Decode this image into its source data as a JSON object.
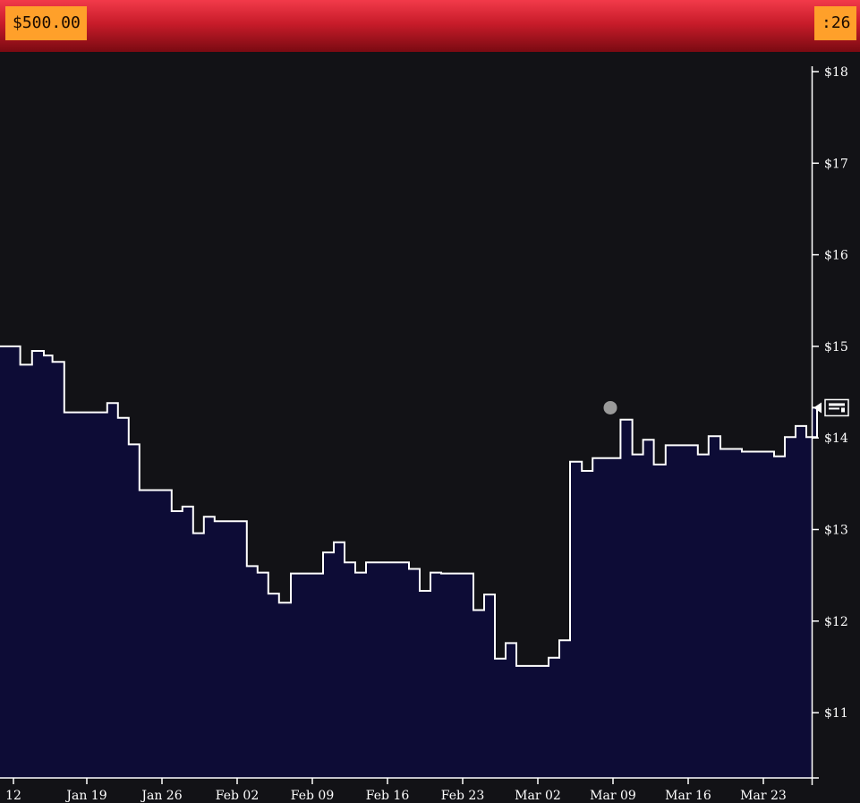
{
  "header": {
    "balance": "$500.00",
    "timer": ":26"
  },
  "colors": {
    "background": "#121216",
    "area_fill": "#0d0c36",
    "line": "#ffffff",
    "topbar": "#d8222f",
    "badge": "#ffa02a",
    "marker": "#9a9a9a"
  },
  "icons": {
    "price_flag": "ticket-flag-icon",
    "marker": "event-dot-icon"
  },
  "chart_data": {
    "type": "area",
    "step": true,
    "title": "",
    "xlabel": "",
    "ylabel": "",
    "ylim": [
      10.2,
      18.1
    ],
    "y_ticks": [
      11,
      12,
      13,
      14,
      15,
      16,
      17,
      18
    ],
    "y_tick_labels": [
      "$11",
      "$12",
      "$13",
      "$14",
      "$15",
      "$16",
      "$17",
      "$18"
    ],
    "x_range": [
      0,
      78.1
    ],
    "x_ticks": [
      0.17,
      7,
      14,
      21,
      28,
      35,
      42,
      49,
      56,
      63,
      70
    ],
    "x_tick_labels": [
      "12",
      "Jan 19",
      "Jan 26",
      "Feb 02",
      "Feb 09",
      "Feb 16",
      "Feb 23",
      "Mar 02",
      "Mar 09",
      "Mar 16",
      "Mar 23"
    ],
    "axis_position": "right",
    "current_value": 14.33,
    "marker_point": {
      "x": 56.9,
      "y": 14.33
    },
    "series": [
      {
        "x": [
          -1.1,
          0.8,
          1.9,
          3.0,
          3.8,
          4.9,
          8.9,
          9.9,
          10.9,
          11.9,
          14.9,
          15.9,
          16.9,
          17.9,
          18.9,
          21.9,
          22.9,
          23.9,
          24.9,
          26.0,
          27.0,
          29.0,
          30.0,
          31.0,
          32.0,
          33.0,
          37.0,
          38.0,
          39.0,
          40.0,
          43.0,
          44.0,
          45.0,
          46.0,
          47.0,
          48.0,
          50.0,
          51.0,
          52.0,
          53.1,
          54.1,
          55.1,
          56.7,
          57.8,
          58.8,
          59.8,
          60.9,
          63.9,
          64.9,
          66.0,
          68.0,
          71.0,
          72.0,
          73.0,
          74.0,
          75.0
        ],
        "values": [
          15.0,
          14.8,
          14.95,
          14.9,
          14.83,
          14.28,
          14.38,
          14.22,
          13.93,
          13.43,
          13.2,
          13.25,
          12.96,
          13.14,
          13.09,
          12.6,
          12.53,
          12.3,
          12.2,
          12.52,
          12.52,
          12.75,
          12.86,
          12.64,
          12.53,
          12.64,
          12.57,
          12.33,
          12.53,
          12.52,
          12.12,
          12.29,
          11.59,
          11.76,
          11.51,
          11.51,
          11.6,
          11.79,
          13.74,
          13.64,
          13.78,
          13.78,
          14.2,
          13.82,
          13.98,
          13.71,
          13.92,
          13.82,
          14.02,
          13.88,
          13.85,
          13.8,
          14.01,
          14.13,
          14.01,
          14.33
        ]
      }
    ]
  }
}
